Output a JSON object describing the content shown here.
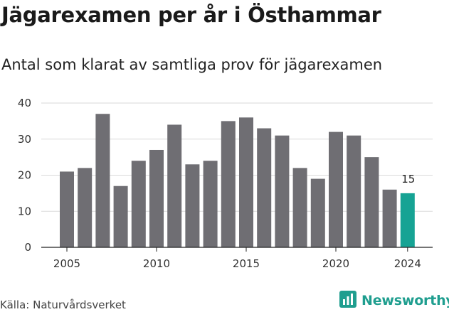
{
  "header": {
    "title": "Jägarexamen per år i Östhammar",
    "subtitle": "Antal som klarat av samtliga prov för jägarexamen"
  },
  "footer": {
    "source": "Källa: Naturvårdsverket",
    "brand": "Newsworthy",
    "brand_icon": "chart-logo-icon"
  },
  "colors": {
    "bar": "#6f6e73",
    "highlight": "#16a394",
    "grid": "#d9d9d9",
    "axis": "#222222",
    "brand": "#1f9e8f"
  },
  "chart_data": {
    "type": "bar",
    "x": [
      2005,
      2006,
      2007,
      2008,
      2009,
      2010,
      2011,
      2012,
      2013,
      2014,
      2015,
      2016,
      2017,
      2018,
      2019,
      2020,
      2021,
      2022,
      2023,
      2024
    ],
    "values": [
      21,
      22,
      37,
      17,
      24,
      27,
      34,
      23,
      24,
      35,
      36,
      33,
      31,
      22,
      19,
      32,
      31,
      25,
      16,
      15
    ],
    "highlight_index": 19,
    "data_labels": [
      {
        "index": 19,
        "text": "15"
      }
    ],
    "xticks": [
      2005,
      2010,
      2015,
      2020,
      2024
    ],
    "yticks": [
      0,
      10,
      20,
      30,
      40
    ],
    "ylim": [
      0,
      40
    ],
    "grid": "horizontal",
    "xlabel": "",
    "ylabel": ""
  }
}
